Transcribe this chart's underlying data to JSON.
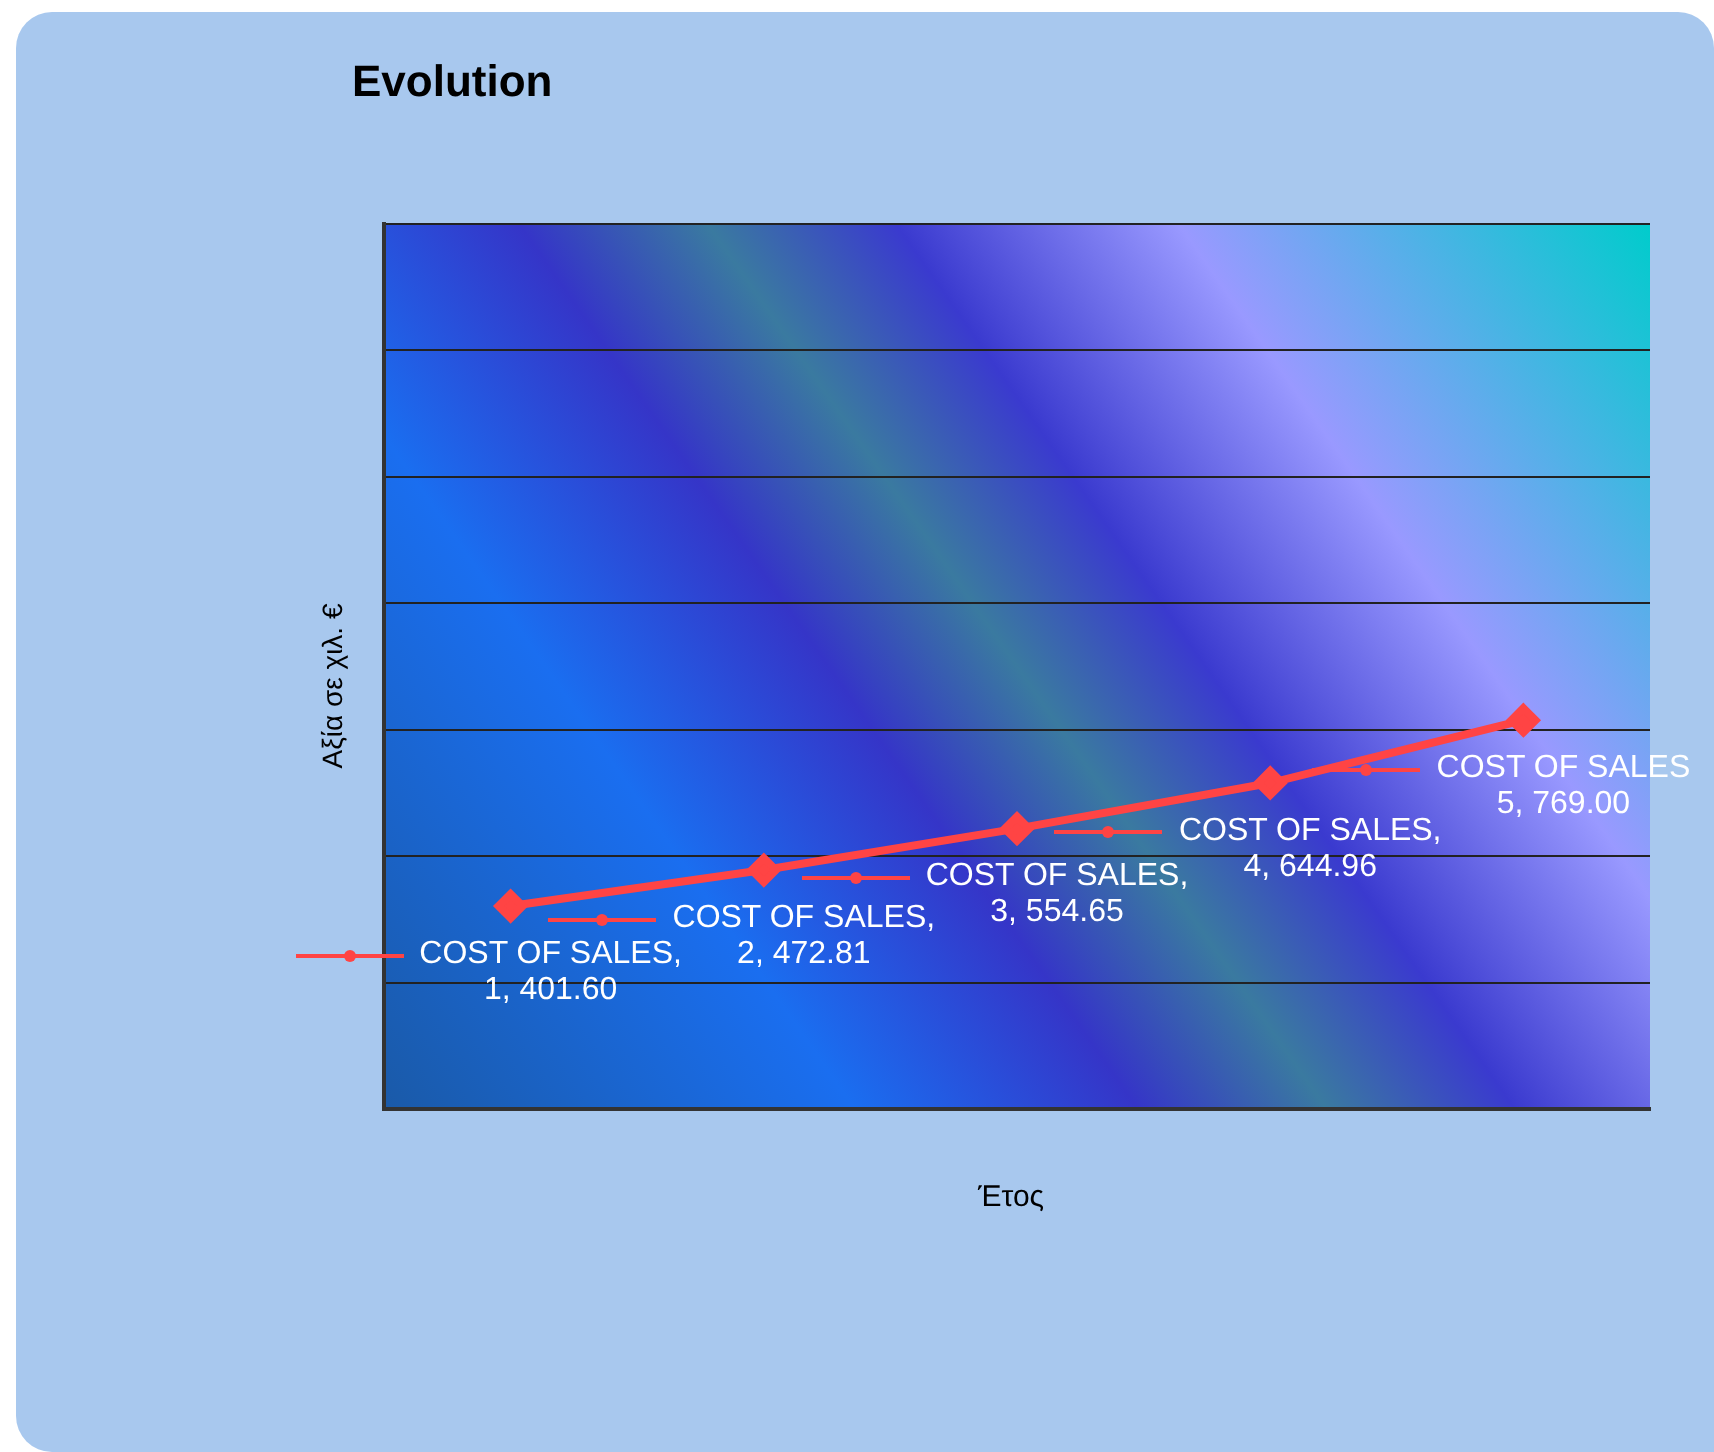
{
  "chart_data": {
    "type": "line",
    "title": "Evolution",
    "xlabel": "Έτος",
    "ylabel": "Αξία σε χιλ. €",
    "categories": [
      null,
      null,
      null,
      null,
      null
    ],
    "series": [
      {
        "color": "#ff4444",
        "values": [
          401.6,
          472.81,
          554.65,
          644.96,
          769.0
        ],
        "value_labels": [
          "COST OF SALES,\n1, 401.60",
          "COST OF SALES,\n2, 472.81",
          "COST OF SALES,\n3, 554.65",
          "COST OF SALES,\n4, 644.96",
          "COST OF SALES\n5, 769.00"
        ]
      }
    ],
    "ylim": [
      0,
      1750
    ],
    "yticks": [
      {
        "value": 0,
        "label": null
      },
      {
        "value": 250,
        "label": null
      },
      {
        "value": 500,
        "label": null
      },
      {
        "value": 750,
        "label": null
      },
      {
        "value": 1000,
        "label": null
      },
      {
        "value": 1250,
        "label": null
      },
      {
        "value": 1500,
        "label": null
      },
      {
        "value": 1750,
        "label": null
      }
    ],
    "grid": "y",
    "legend": false,
    "marker": "diamond",
    "line_style": "solid"
  }
}
